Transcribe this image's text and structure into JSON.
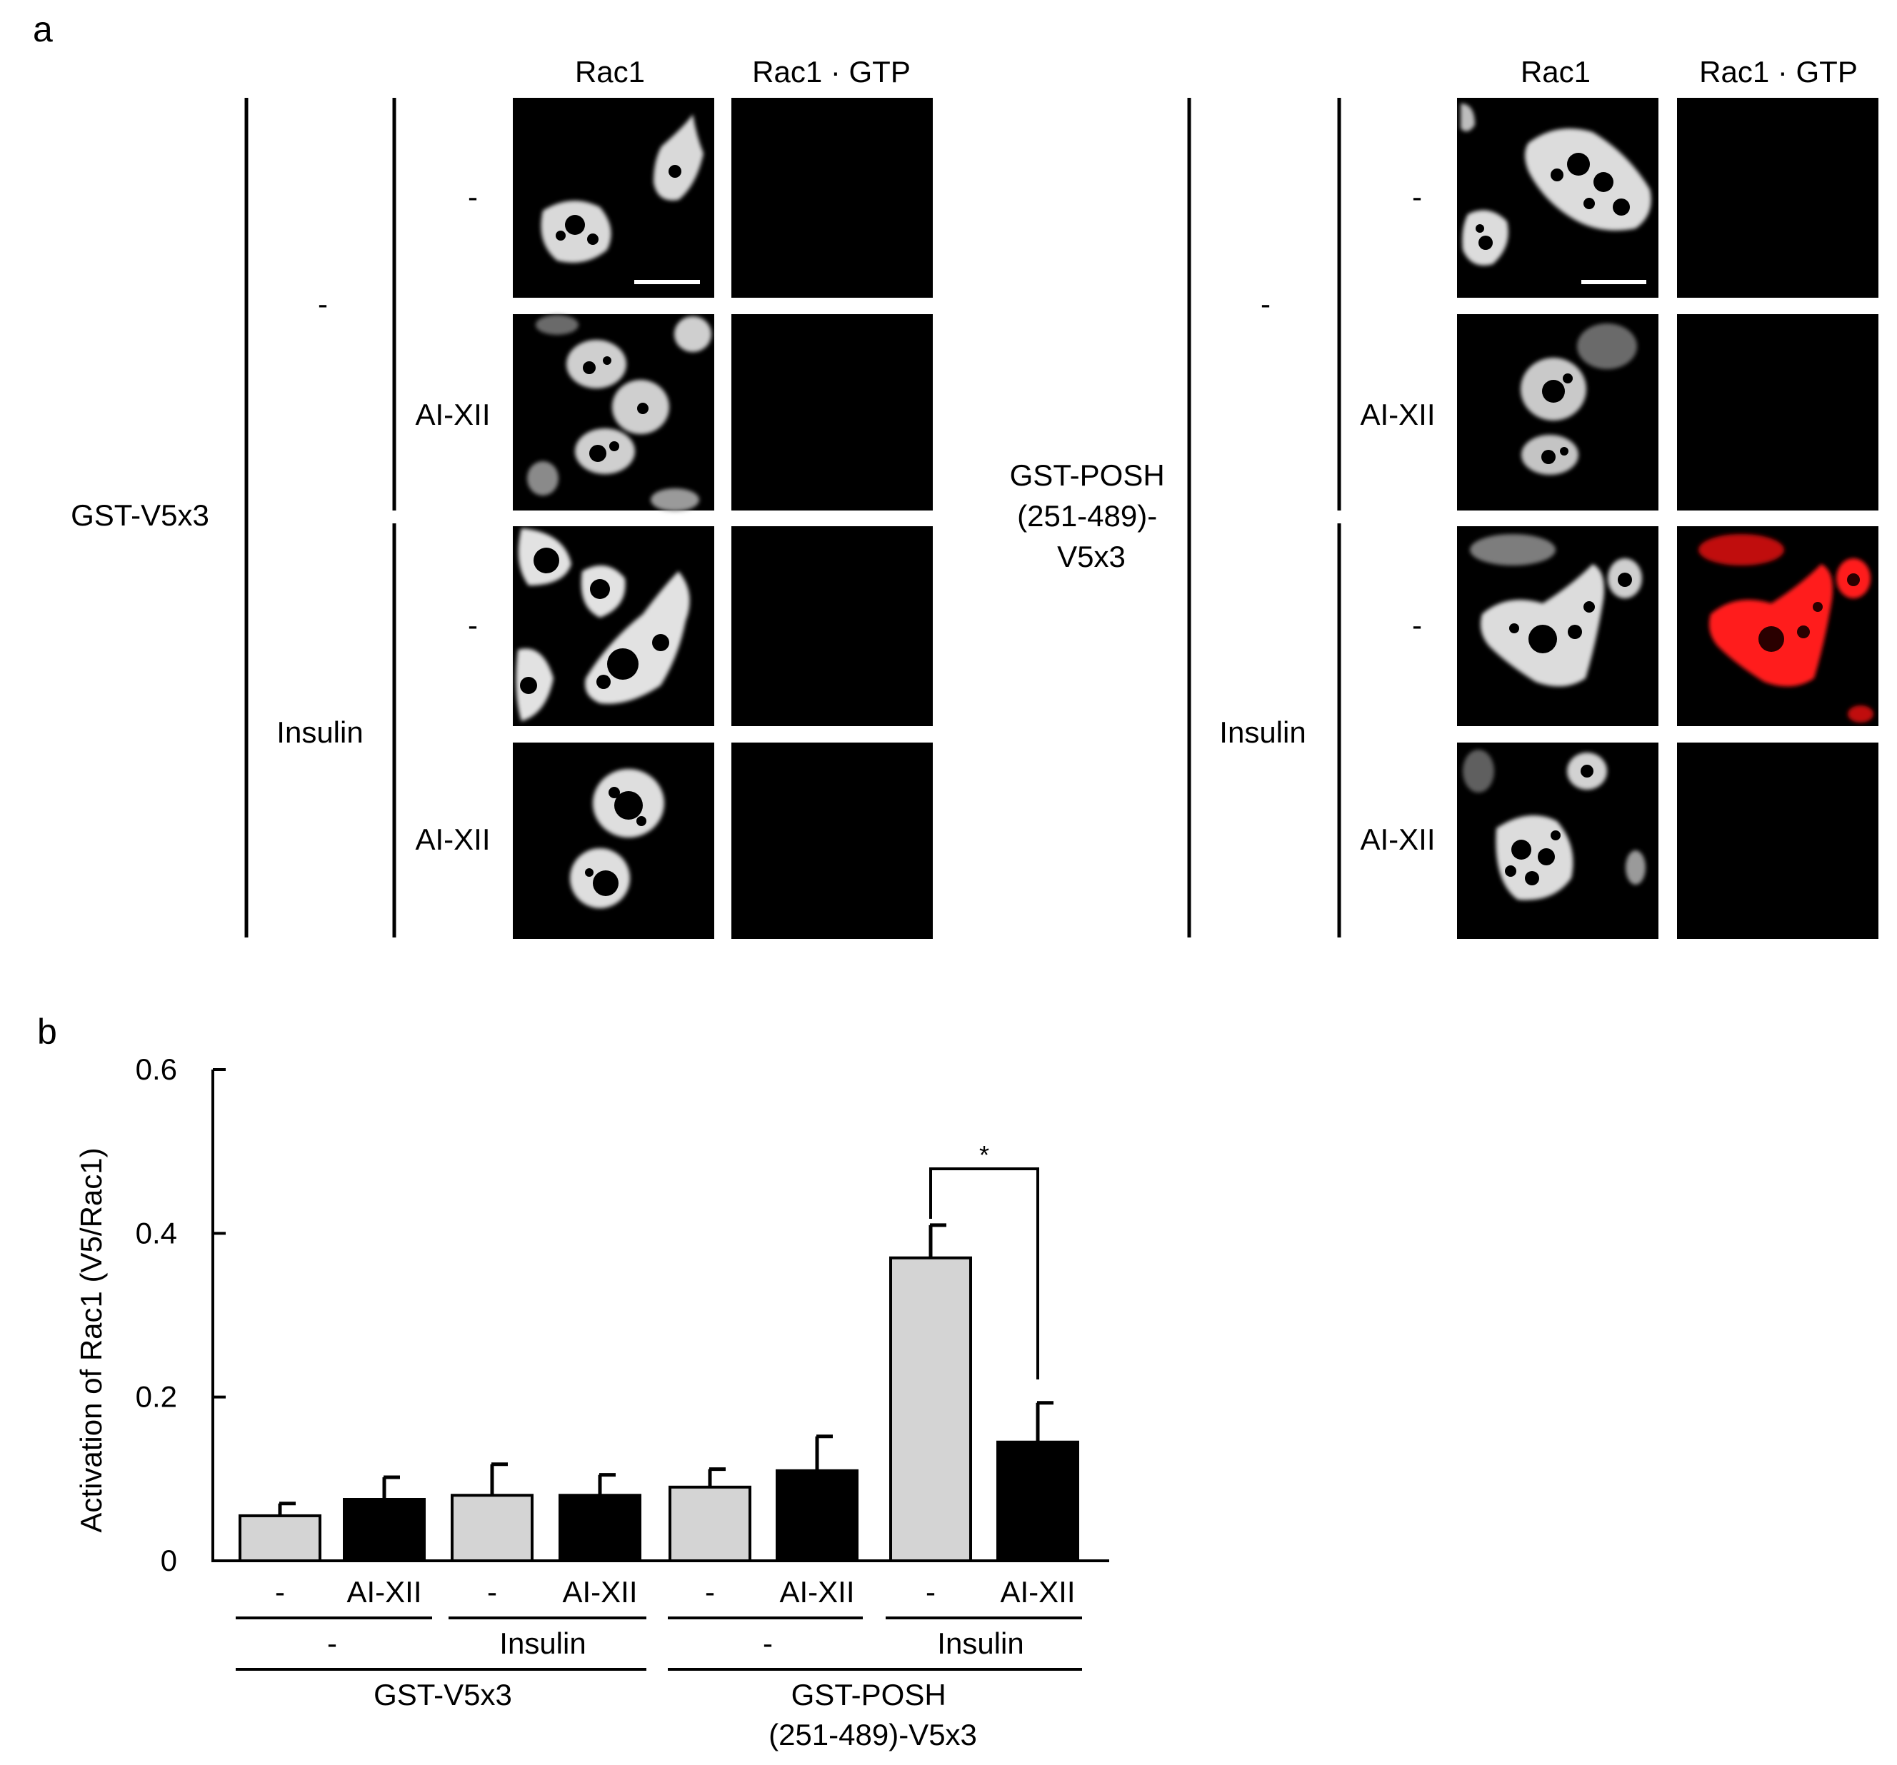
{
  "panel_a": {
    "letter": "a",
    "column_headers": [
      "Rac1",
      "Rac1 · GTP"
    ],
    "groups": [
      {
        "construct_lines": [
          "GST-V5x3"
        ],
        "treatments": [
          "-",
          "Insulin"
        ],
        "inhibitors": [
          "-",
          "AI-XII",
          "-",
          "AI-XII"
        ],
        "rac1_gtp_signal": [
          0,
          0,
          0,
          0
        ]
      },
      {
        "construct_lines": [
          "GST-POSH",
          "(251-489)-",
          "V5x3"
        ],
        "treatments": [
          "-",
          "Insulin"
        ],
        "inhibitors": [
          "-",
          "AI-XII",
          "-",
          "AI-XII"
        ],
        "rac1_gtp_signal": [
          0,
          0,
          1,
          0
        ]
      }
    ],
    "colors": {
      "rac1_gtp_positive": "#ff1a1a",
      "background": "#000000",
      "cells": "#e8e8e8"
    }
  },
  "panel_b": {
    "letter": "b",
    "inhibitor_labels": [
      "-",
      "AI-XII",
      "-",
      "AI-XII",
      "-",
      "AI-XII",
      "-",
      "AI-XII"
    ],
    "treatment_labels": [
      "-",
      "Insulin",
      "-",
      "Insulin"
    ],
    "construct_labels": [
      {
        "lines": [
          "GST-V5x3"
        ]
      },
      {
        "lines": [
          "GST-POSH",
          "(251-489)-V5x3"
        ]
      }
    ],
    "significance": "*"
  },
  "chart_data": {
    "type": "bar",
    "ylabel": "Activation of Rac1 (V5/Rac1)",
    "ylim": [
      0,
      0.6
    ],
    "yticks": [
      0,
      0.2,
      0.4,
      0.6
    ],
    "ytick_labels": [
      "0",
      "0.2",
      "0.4",
      "0.6"
    ],
    "values": [
      0.055,
      0.075,
      0.08,
      0.08,
      0.09,
      0.11,
      0.37,
      0.145
    ],
    "errors": [
      0.015,
      0.027,
      0.038,
      0.025,
      0.022,
      0.042,
      0.04,
      0.048
    ],
    "bar_colors": [
      "#d4d4d4",
      "#000000",
      "#d4d4d4",
      "#000000",
      "#d4d4d4",
      "#000000",
      "#d4d4d4",
      "#000000"
    ],
    "significance_pairs": [
      [
        6,
        7
      ]
    ]
  }
}
